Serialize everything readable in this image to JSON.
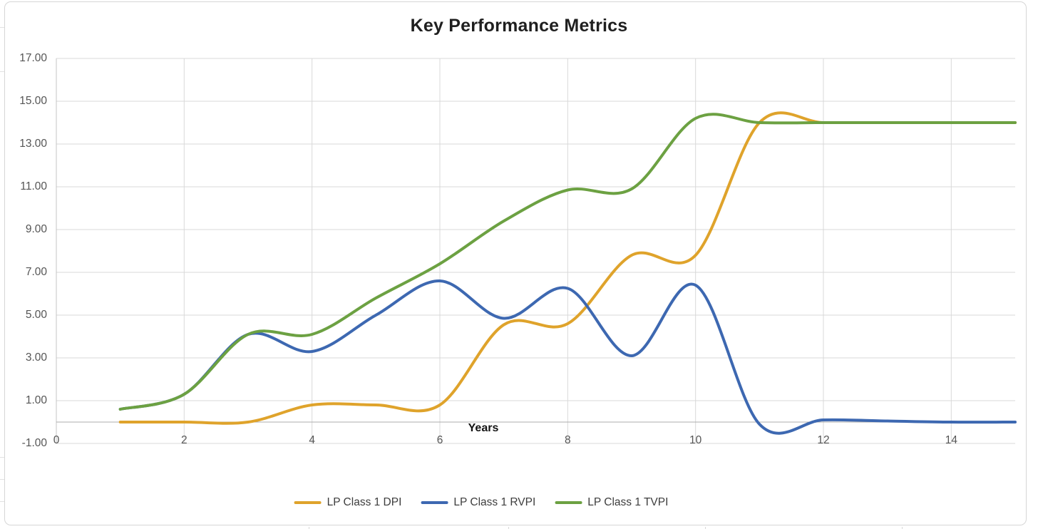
{
  "chart_data": {
    "type": "line",
    "smooth": true,
    "title": "Key Performance Metrics",
    "xlabel": "Years",
    "legend_position": "bottom",
    "grid": true,
    "x": [
      1,
      2,
      3,
      4,
      5,
      6,
      7,
      8,
      9,
      10,
      11,
      12,
      13,
      14,
      15
    ],
    "series": [
      {
        "name": "LP Class 1 DPI",
        "color": "#dfa32b",
        "values": [
          0,
          0,
          0,
          0.8,
          0.8,
          0.8,
          4.55,
          4.6,
          7.8,
          7.8,
          14.0,
          14.0,
          14.0,
          14.0,
          14.0
        ]
      },
      {
        "name": "LP Class 1 RVPI",
        "color": "#3d68b1",
        "values": [
          0.6,
          1.3,
          4.1,
          3.3,
          5.0,
          6.6,
          4.85,
          6.25,
          3.1,
          6.4,
          -0.1,
          0.1,
          0.05,
          0,
          0
        ]
      },
      {
        "name": "LP Class 1 TVPI",
        "color": "#6ca142",
        "values": [
          0.6,
          1.3,
          4.1,
          4.1,
          5.8,
          7.4,
          9.4,
          10.85,
          10.9,
          14.2,
          14.0,
          14.0,
          14.0,
          14.0,
          14.0
        ]
      }
    ],
    "y_axis": {
      "min": -1,
      "max": 17,
      "step": 2,
      "tick_values": [
        -1,
        1,
        3,
        5,
        7,
        9,
        11,
        13,
        15,
        17
      ],
      "tick_labels": [
        "-1.00",
        "1.00",
        "3.00",
        "5.00",
        "7.00",
        "9.00",
        "11.00",
        "13.00",
        "15.00",
        "17.00"
      ]
    },
    "x_axis": {
      "min": 0,
      "max": 15,
      "tick_values": [
        0,
        2,
        4,
        6,
        8,
        10,
        12,
        14
      ],
      "tick_labels": [
        "0",
        "2",
        "4",
        "6",
        "8",
        "10",
        "12",
        "14"
      ]
    },
    "colors": {
      "gridline": "#d9d9d9",
      "y_axis_line": "#c4c4c4",
      "zero_axis_line": "#acacac",
      "tick_text": "#555555",
      "title_text": "#1f1f1f"
    }
  }
}
